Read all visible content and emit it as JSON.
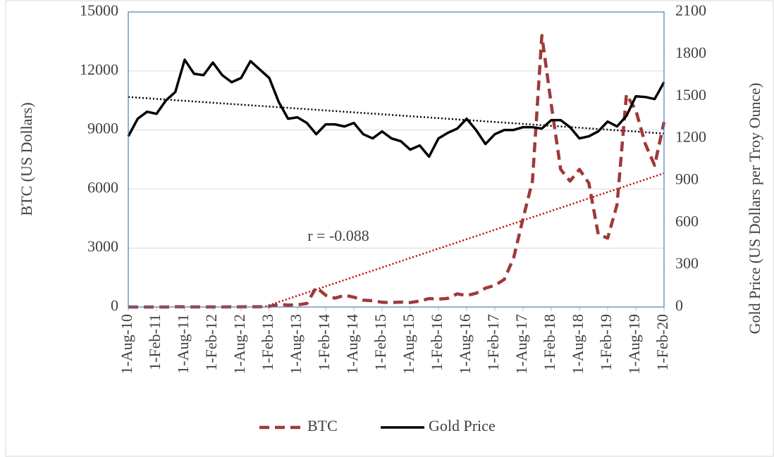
{
  "chart_data": {
    "type": "line",
    "y_label": "BTC (US Dollars)",
    "y2_label": "Gold Price (US Dollars per Troy Ounce)",
    "categories": [
      "1-Aug-10",
      null,
      null,
      "1-Feb-11",
      null,
      null,
      "1-Aug-11",
      null,
      null,
      "1-Feb-12",
      null,
      null,
      "1-Aug-12",
      null,
      null,
      "1-Feb-13",
      null,
      null,
      "1-Aug-13",
      null,
      null,
      "1-Feb-14",
      null,
      null,
      "1-Aug-14",
      null,
      null,
      "1-Feb-15",
      null,
      null,
      "1-Aug-15",
      null,
      null,
      "1-Feb-16",
      null,
      null,
      "1-Aug-16",
      null,
      null,
      "1-Feb-17",
      null,
      null,
      "1-Aug-17",
      null,
      null,
      "1-Feb-18",
      null,
      null,
      "1-Aug-18",
      null,
      null,
      "1-Feb-19",
      null,
      null,
      "1-Aug-19",
      null,
      null,
      "1-Feb-20"
    ],
    "series": [
      {
        "name": "BTC",
        "color": "#9e3a38",
        "style": "dashed",
        "axis": "y",
        "values": [
          0,
          0,
          0,
          1,
          1,
          15,
          10,
          3,
          4,
          5,
          5,
          7,
          10,
          12,
          13,
          30,
          130,
          100,
          110,
          180,
          1000,
          600,
          450,
          600,
          500,
          350,
          320,
          240,
          230,
          250,
          230,
          300,
          430,
          400,
          440,
          670,
          580,
          700,
          960,
          1100,
          1400,
          2500,
          4500,
          6400,
          13800,
          10300,
          7000,
          6400,
          7000,
          6300,
          3700,
          3500,
          5200,
          10800,
          10000,
          8300,
          7200,
          9400
        ]
      },
      {
        "name": "Gold Price",
        "color": "#000000",
        "style": "solid",
        "axis": "y2",
        "values": [
          1215,
          1340,
          1390,
          1375,
          1470,
          1530,
          1760,
          1660,
          1650,
          1740,
          1650,
          1600,
          1630,
          1750,
          1690,
          1630,
          1460,
          1340,
          1350,
          1310,
          1230,
          1300,
          1300,
          1285,
          1310,
          1230,
          1200,
          1250,
          1200,
          1180,
          1120,
          1150,
          1070,
          1200,
          1240,
          1270,
          1340,
          1260,
          1160,
          1230,
          1260,
          1260,
          1280,
          1280,
          1270,
          1330,
          1330,
          1280,
          1200,
          1215,
          1250,
          1320,
          1285,
          1360,
          1500,
          1495,
          1480,
          1600
        ]
      }
    ],
    "trendlines": [
      {
        "axis": "y2",
        "color": "#000000",
        "start": 1495,
        "end": 1235
      },
      {
        "axis": "y",
        "color": "#c00000",
        "start": -2300,
        "end": 6800
      }
    ],
    "annotation": "r = -0.088",
    "ylim": [
      0,
      15000
    ],
    "yticks": [
      0,
      3000,
      6000,
      9000,
      12000,
      15000
    ],
    "y2lim": [
      0,
      2100
    ],
    "y2ticks": [
      0,
      300,
      600,
      900,
      1200,
      1500,
      1800,
      2100
    ],
    "grid": true,
    "legend": "bottom"
  }
}
